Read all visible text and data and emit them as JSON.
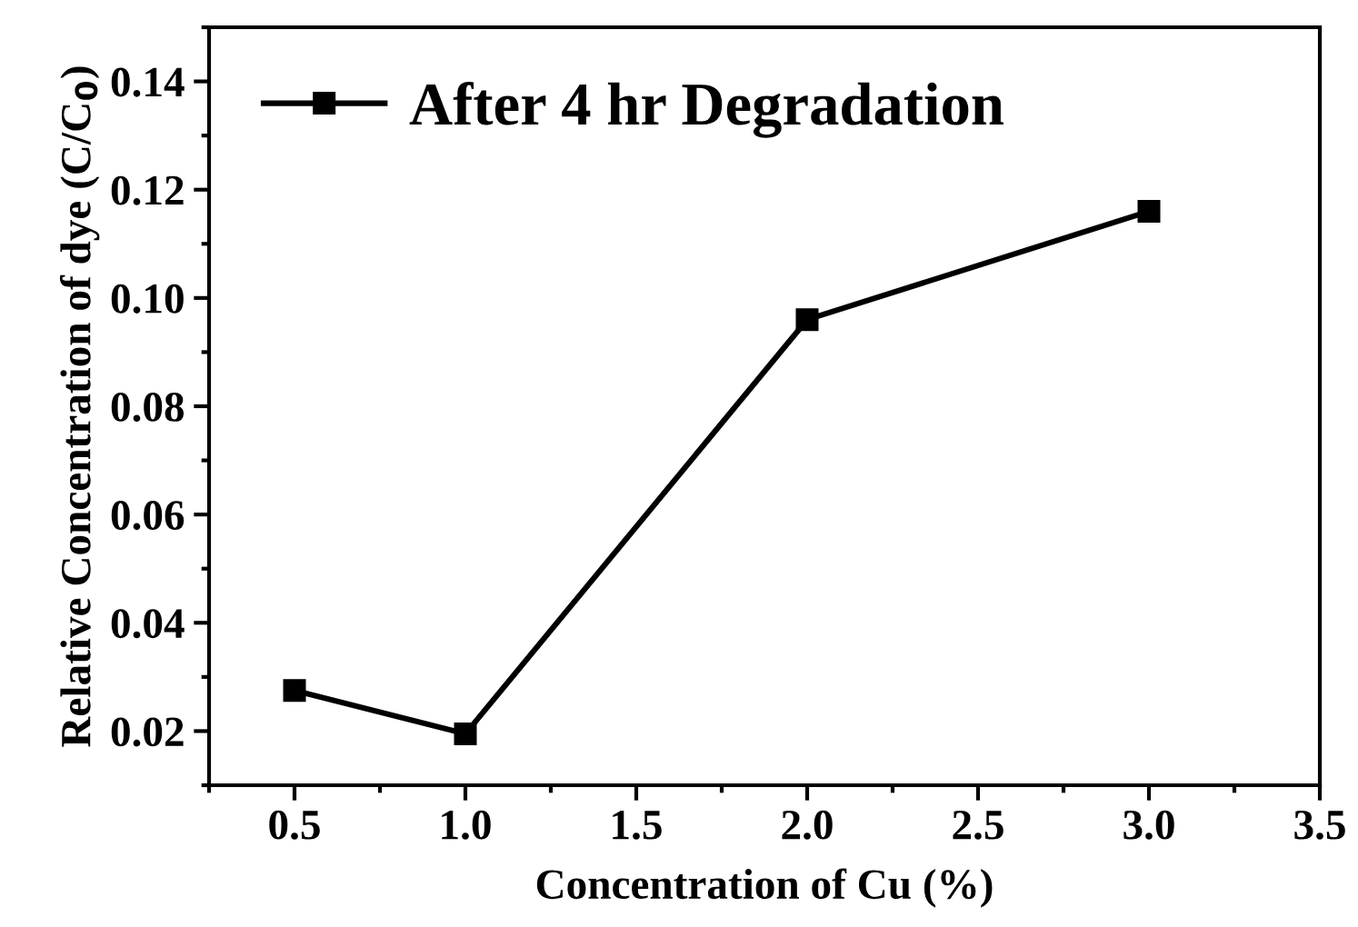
{
  "chart_data": {
    "type": "line",
    "xlabel": "Concentration of Cu (%)",
    "ylabel": "Relative Concentration of dye (C/C$_{0}$)",
    "x": [
      0.5,
      1.0,
      2.0,
      3.0
    ],
    "series": [
      {
        "name": "After 4 hr Degradation",
        "color": "#000000",
        "values": [
          0.0275,
          0.0195,
          0.096,
          0.116
        ]
      }
    ],
    "xlim": [
      0.25,
      3.5
    ],
    "xticks": [
      {
        "value": 0.5,
        "label": "0.5"
      },
      {
        "value": 1.0,
        "label": "1.0"
      },
      {
        "value": 1.5,
        "label": "1.5"
      },
      {
        "value": 2.0,
        "label": "2.0"
      },
      {
        "value": 2.5,
        "label": "2.5"
      },
      {
        "value": 3.0,
        "label": "3.0"
      },
      {
        "value": 3.5,
        "label": "3.5"
      }
    ],
    "ylim": [
      0.01,
      0.15
    ],
    "yticks": [
      0.02,
      0.04,
      0.06,
      0.08,
      {
        "value": 0.1,
        "label": "0.10"
      },
      0.12,
      0.14
    ],
    "marker": "square",
    "line_style": "solid",
    "grid": false,
    "legend": "top left"
  }
}
